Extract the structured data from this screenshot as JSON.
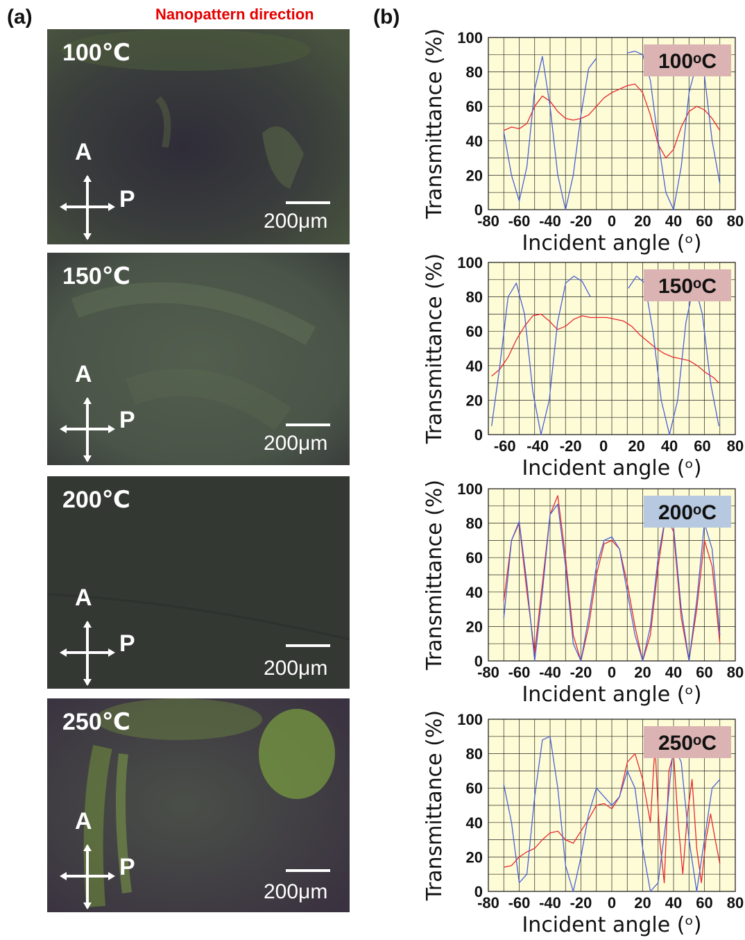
{
  "panel_a_label": "(a)",
  "panel_b_label": "(b)",
  "nanopattern_label": "Nanopattern direction",
  "polarizer": {
    "analyzer": "A",
    "polarizer": "P"
  },
  "scale_bar": "200μm",
  "micrographs": [
    {
      "temperature": "100℃"
    },
    {
      "temperature": "150℃"
    },
    {
      "temperature": "200℃"
    },
    {
      "temperature": "250℃"
    }
  ],
  "colors": {
    "red_curve": "#e8262c",
    "blue_curve": "#4a5fd6",
    "plot_bg": "#fdfcd6",
    "badge_pink": "#dbb3b3",
    "badge_blue": "#b7c9e0",
    "arrow": "#e60000"
  },
  "chart_data": [
    {
      "type": "line",
      "badge": "100ᵒC",
      "xlabel": "Incident angle (ᵒ)",
      "ylabel": "Transmittance (%)",
      "xlim": [
        -80,
        80
      ],
      "ylim": [
        0,
        100
      ],
      "xticks": [
        -80,
        -60,
        -40,
        -20,
        0,
        20,
        40,
        60,
        80
      ],
      "yticks": [
        0,
        20,
        40,
        60,
        80,
        100
      ],
      "series": [
        {
          "color": "red",
          "x": [
            -70,
            -65,
            -60,
            -55,
            -50,
            -45,
            -40,
            -35,
            -30,
            -25,
            -20,
            -15,
            -10,
            -5,
            0,
            5,
            10,
            15,
            20,
            25,
            30,
            35,
            40,
            45,
            50,
            55,
            60,
            65,
            70
          ],
          "y": [
            46,
            48,
            47,
            50,
            60,
            66,
            63,
            57,
            53,
            52,
            53,
            55,
            60,
            65,
            68,
            70,
            72,
            73,
            68,
            55,
            38,
            30,
            35,
            48,
            57,
            60,
            58,
            53,
            46
          ]
        },
        {
          "color": "blue",
          "x": [
            -70,
            -65,
            -60,
            -55,
            -50,
            -45,
            -40,
            -35,
            -30,
            -25,
            -20,
            -15,
            -10,
            null,
            10,
            15,
            20,
            25,
            30,
            35,
            40,
            45,
            50,
            55,
            60,
            65,
            70
          ],
          "y": [
            45,
            20,
            5,
            25,
            70,
            89,
            60,
            20,
            0,
            20,
            55,
            82,
            88,
            null,
            91,
            92,
            90,
            75,
            40,
            10,
            0,
            25,
            68,
            85,
            78,
            40,
            15
          ]
        }
      ]
    },
    {
      "type": "line",
      "badge": "150ᵒC",
      "xlabel": "Incident angle (ᵒ)",
      "ylabel": "Transmittance (%)",
      "xlim": [
        -70,
        80
      ],
      "ylim": [
        0,
        100
      ],
      "xticks": [
        -80,
        -60,
        -40,
        -20,
        0,
        20,
        40,
        60,
        80
      ],
      "yticks": [
        0,
        20,
        40,
        60,
        80,
        100
      ],
      "series": [
        {
          "color": "red",
          "x": [
            -68,
            -63,
            -58,
            -53,
            -48,
            -43,
            -38,
            -33,
            -28,
            -23,
            -18,
            -13,
            -8,
            -3,
            2,
            7,
            12,
            17,
            22,
            27,
            32,
            37,
            42,
            47,
            52,
            57,
            62,
            67,
            70
          ],
          "y": [
            34,
            38,
            45,
            55,
            63,
            69,
            70,
            66,
            61,
            63,
            67,
            69,
            68,
            68,
            68,
            67,
            66,
            63,
            58,
            54,
            50,
            47,
            45,
            44,
            43,
            40,
            36,
            33,
            30
          ]
        },
        {
          "color": "blue",
          "x": [
            -68,
            -63,
            -58,
            -53,
            -48,
            -43,
            -38,
            -33,
            -28,
            -23,
            -18,
            -13,
            -8,
            null,
            15,
            20,
            25,
            30,
            35,
            40,
            45,
            50,
            55,
            60,
            65,
            70
          ],
          "y": [
            5,
            40,
            80,
            88,
            70,
            25,
            0,
            20,
            65,
            88,
            92,
            89,
            80,
            null,
            85,
            92,
            88,
            60,
            20,
            0,
            20,
            65,
            88,
            70,
            30,
            5
          ]
        }
      ]
    },
    {
      "type": "line",
      "badge": "200ᵒC",
      "xlabel": "Incident angle (ᵒ)",
      "ylabel": "Transmittance (%)",
      "xlim": [
        -80,
        80
      ],
      "ylim": [
        0,
        100
      ],
      "xticks": [
        -80,
        -60,
        -40,
        -20,
        0,
        20,
        40,
        60,
        80
      ],
      "yticks": [
        0,
        20,
        40,
        60,
        80,
        100
      ],
      "series": [
        {
          "color": "red",
          "x": [
            -70,
            -65,
            -60,
            -55,
            -50,
            -45,
            -40,
            -35,
            -30,
            -25,
            -20,
            -15,
            -10,
            -5,
            0,
            5,
            10,
            15,
            20,
            25,
            30,
            35,
            40,
            45,
            50,
            55,
            60,
            65,
            70
          ],
          "y": [
            35,
            70,
            80,
            40,
            5,
            45,
            85,
            96,
            60,
            15,
            0,
            20,
            50,
            68,
            70,
            65,
            45,
            20,
            0,
            15,
            55,
            85,
            75,
            25,
            0,
            30,
            70,
            55,
            10
          ]
        },
        {
          "color": "blue",
          "x": [
            -70,
            -65,
            -60,
            -55,
            -50,
            -45,
            -40,
            -35,
            -30,
            -25,
            -20,
            -15,
            -10,
            -5,
            0,
            5,
            10,
            15,
            20,
            25,
            30,
            35,
            40,
            45,
            50,
            55,
            60,
            65,
            70
          ],
          "y": [
            25,
            70,
            81,
            45,
            0,
            40,
            85,
            91,
            55,
            10,
            0,
            25,
            55,
            70,
            72,
            65,
            40,
            15,
            0,
            20,
            60,
            85,
            78,
            30,
            0,
            35,
            80,
            65,
            15
          ]
        }
      ]
    },
    {
      "type": "line",
      "badge": "250ᵒC",
      "xlabel": "Incident angle (ᵒ)",
      "ylabel": "Transmittance (%)",
      "xlim": [
        -80,
        80
      ],
      "ylim": [
        0,
        100
      ],
      "xticks": [
        -80,
        -60,
        -40,
        -20,
        0,
        20,
        40,
        60,
        80
      ],
      "yticks": [
        0,
        20,
        40,
        60,
        80,
        100
      ],
      "series": [
        {
          "color": "red",
          "x": [
            -70,
            -65,
            -60,
            -55,
            -50,
            -45,
            -40,
            -35,
            -30,
            -25,
            -20,
            -15,
            -10,
            -5,
            0,
            5,
            10,
            15,
            20,
            25,
            28,
            31,
            34,
            37,
            40,
            43,
            46,
            49,
            52,
            55,
            58,
            61,
            64,
            67,
            70
          ],
          "y": [
            14,
            15,
            20,
            23,
            25,
            30,
            34,
            35,
            30,
            28,
            35,
            42,
            50,
            51,
            48,
            55,
            75,
            80,
            65,
            40,
            85,
            30,
            5,
            70,
            80,
            40,
            10,
            45,
            65,
            25,
            5,
            30,
            45,
            30,
            16
          ]
        },
        {
          "color": "blue",
          "x": [
            -70,
            -65,
            -60,
            -55,
            -50,
            -45,
            -40,
            -35,
            -30,
            -25,
            -20,
            -15,
            -10,
            -5,
            0,
            5,
            10,
            15,
            20,
            25,
            30,
            35,
            40,
            45,
            50,
            55,
            60,
            65,
            70
          ],
          "y": [
            62,
            40,
            5,
            10,
            55,
            88,
            90,
            60,
            15,
            0,
            20,
            45,
            60,
            55,
            50,
            55,
            70,
            60,
            25,
            0,
            5,
            40,
            85,
            75,
            30,
            0,
            30,
            60,
            65
          ]
        }
      ]
    }
  ]
}
